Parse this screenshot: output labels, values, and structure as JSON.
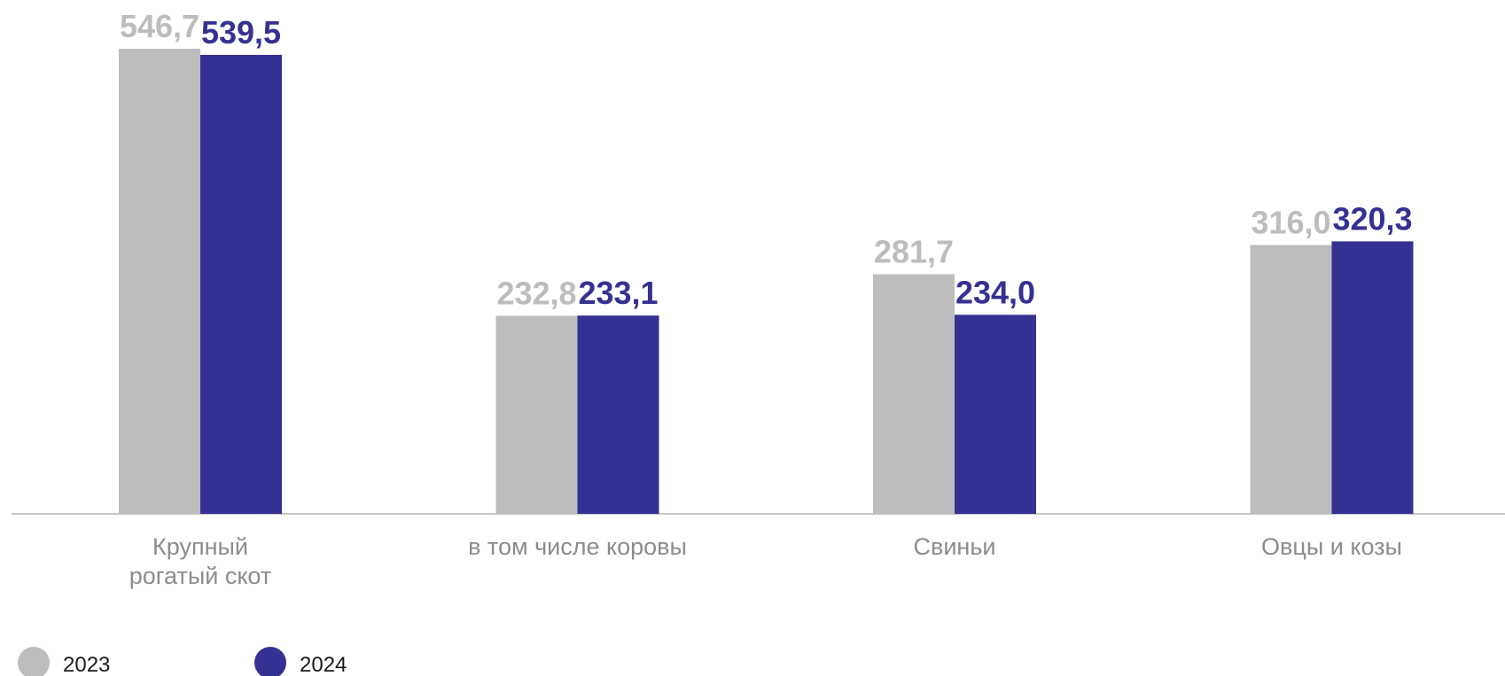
{
  "chart_data": {
    "type": "bar",
    "categories": [
      [
        "Крупный",
        "рогатый скот"
      ],
      [
        "в том числе коровы"
      ],
      [
        "Свиньи"
      ],
      [
        "Овцы и козы"
      ]
    ],
    "series": [
      {
        "name": "2023",
        "color": "#bdbdbd",
        "values": [
          546.7,
          232.8,
          281.7,
          316.0
        ],
        "labels": [
          "546,7",
          "232,8",
          "281,7",
          "316,0"
        ]
      },
      {
        "name": "2024",
        "color": "#353192",
        "values": [
          539.5,
          233.1,
          234.0,
          320.3
        ],
        "labels": [
          "539,5",
          "233,1",
          "234,0",
          "320,3"
        ]
      }
    ],
    "legend_position": "bottom-left",
    "grid": false
  }
}
